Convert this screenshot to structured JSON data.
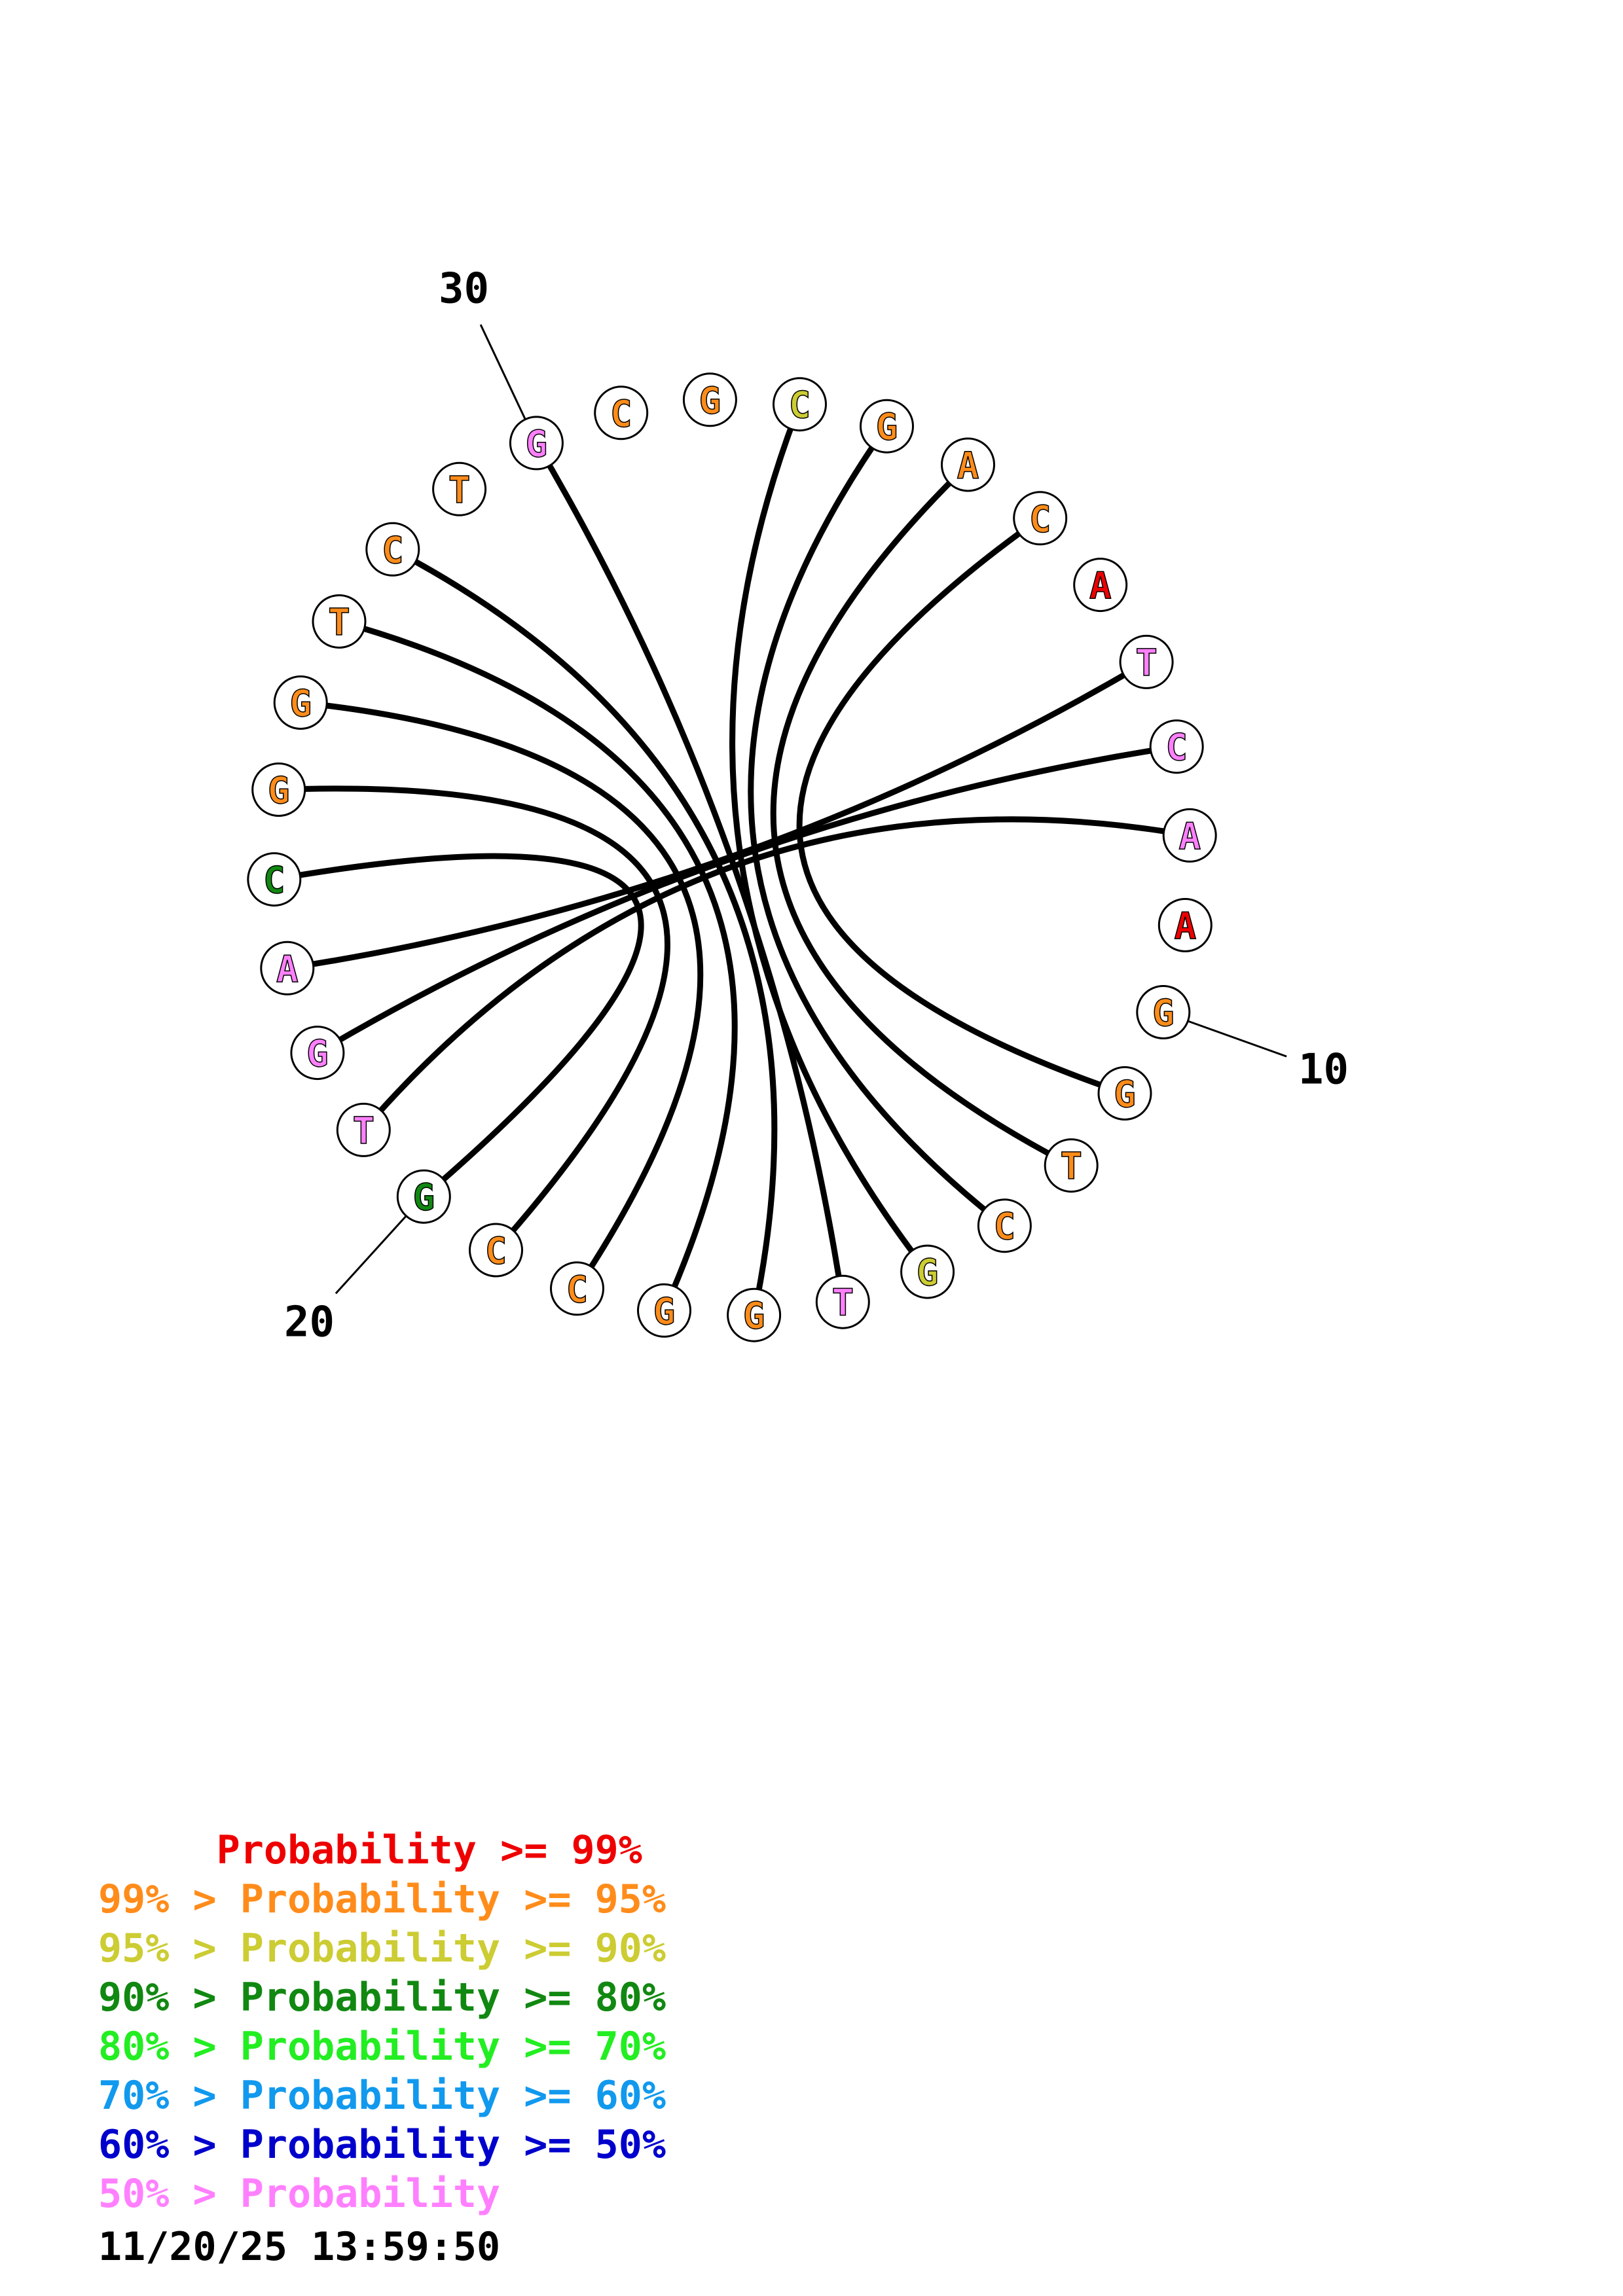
{
  "bases": [
    {
      "n": 1,
      "letter": "C",
      "color": "#cccc33"
    },
    {
      "n": 2,
      "letter": "G",
      "color": "#ff8c1a"
    },
    {
      "n": 3,
      "letter": "A",
      "color": "#ff8c1a"
    },
    {
      "n": 4,
      "letter": "C",
      "color": "#ff8c1a"
    },
    {
      "n": 5,
      "letter": "A",
      "color": "#ee0000"
    },
    {
      "n": 6,
      "letter": "T",
      "color": "#ff80ff"
    },
    {
      "n": 7,
      "letter": "C",
      "color": "#ff80ff"
    },
    {
      "n": 8,
      "letter": "A",
      "color": "#ff80ff"
    },
    {
      "n": 9,
      "letter": "A",
      "color": "#ee0000"
    },
    {
      "n": 10,
      "letter": "G",
      "color": "#ff8c1a"
    },
    {
      "n": 11,
      "letter": "G",
      "color": "#ff8c1a"
    },
    {
      "n": 12,
      "letter": "T",
      "color": "#ff8c1a"
    },
    {
      "n": 13,
      "letter": "C",
      "color": "#ff8c1a"
    },
    {
      "n": 14,
      "letter": "G",
      "color": "#cccc33"
    },
    {
      "n": 15,
      "letter": "T",
      "color": "#ff80ff"
    },
    {
      "n": 16,
      "letter": "G",
      "color": "#ff8c1a"
    },
    {
      "n": 17,
      "letter": "G",
      "color": "#ff8c1a"
    },
    {
      "n": 18,
      "letter": "C",
      "color": "#ff8c1a"
    },
    {
      "n": 19,
      "letter": "C",
      "color": "#ff8c1a"
    },
    {
      "n": 20,
      "letter": "G",
      "color": "#118811"
    },
    {
      "n": 21,
      "letter": "T",
      "color": "#ff80ff"
    },
    {
      "n": 22,
      "letter": "G",
      "color": "#ff80ff"
    },
    {
      "n": 23,
      "letter": "A",
      "color": "#ff80ff"
    },
    {
      "n": 24,
      "letter": "C",
      "color": "#118811"
    },
    {
      "n": 25,
      "letter": "G",
      "color": "#ff8c1a"
    },
    {
      "n": 26,
      "letter": "G",
      "color": "#ff8c1a"
    },
    {
      "n": 27,
      "letter": "T",
      "color": "#ff8c1a"
    },
    {
      "n": 28,
      "letter": "C",
      "color": "#ff8c1a"
    },
    {
      "n": 29,
      "letter": "T",
      "color": "#ff8c1a"
    },
    {
      "n": 30,
      "letter": "G",
      "color": "#ff80ff"
    },
    {
      "n": 31,
      "letter": "C",
      "color": "#ff8c1a"
    },
    {
      "n": 32,
      "letter": "G",
      "color": "#ff8c1a"
    }
  ],
  "pairs": [
    [
      1,
      14
    ],
    [
      2,
      13
    ],
    [
      3,
      12
    ],
    [
      4,
      11
    ],
    [
      6,
      23
    ],
    [
      7,
      22
    ],
    [
      8,
      21
    ],
    [
      15,
      30
    ],
    [
      16,
      28
    ],
    [
      17,
      27
    ],
    [
      18,
      26
    ],
    [
      19,
      25
    ],
    [
      20,
      24
    ]
  ],
  "ticks": [
    {
      "n": 10,
      "label": "10"
    },
    {
      "n": 20,
      "label": "20"
    },
    {
      "n": 30,
      "label": "30"
    }
  ],
  "legend": [
    {
      "text": "     Probability >= 99%",
      "color": "#ee0000"
    },
    {
      "text": "99% > Probability >= 95%",
      "color": "#ff8c1a"
    },
    {
      "text": "95% > Probability >= 90%",
      "color": "#cccc33"
    },
    {
      "text": "90% > Probability >= 80%",
      "color": "#118811"
    },
    {
      "text": "80% > Probability >= 70%",
      "color": "#22ee22"
    },
    {
      "text": "70% > Probability >= 60%",
      "color": "#1199ee"
    },
    {
      "text": "60% > Probability >= 50%",
      "color": "#0000cc"
    },
    {
      "text": "50% > Probability",
      "color": "#ff80ff"
    }
  ],
  "timestamp": "11/20/25 13:59:50"
}
